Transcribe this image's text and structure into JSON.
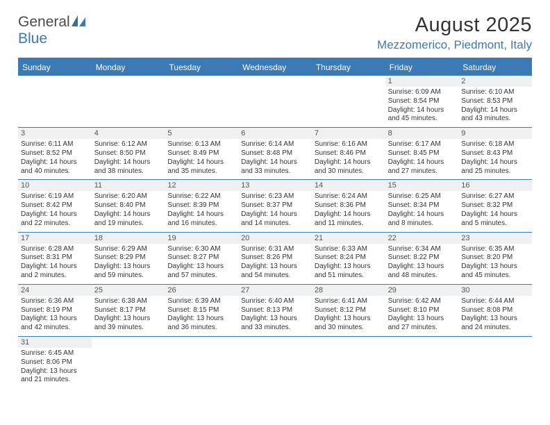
{
  "brand": {
    "word1": "General",
    "word2": "Blue"
  },
  "title": "August 2025",
  "location": "Mezzomerico, Piedmont, Italy",
  "colors": {
    "brand_blue": "#3b7ab5",
    "header_gray": "#eef0f1",
    "text": "#333333",
    "background": "#ffffff"
  },
  "day_labels": [
    "Sunday",
    "Monday",
    "Tuesday",
    "Wednesday",
    "Thursday",
    "Friday",
    "Saturday"
  ],
  "calendar": {
    "type": "table",
    "columns": 7,
    "weeks": [
      [
        null,
        null,
        null,
        null,
        null,
        {
          "n": "1",
          "sr": "Sunrise: 6:09 AM",
          "ss": "Sunset: 8:54 PM",
          "d1": "Daylight: 14 hours",
          "d2": "and 45 minutes."
        },
        {
          "n": "2",
          "sr": "Sunrise: 6:10 AM",
          "ss": "Sunset: 8:53 PM",
          "d1": "Daylight: 14 hours",
          "d2": "and 43 minutes."
        }
      ],
      [
        {
          "n": "3",
          "sr": "Sunrise: 6:11 AM",
          "ss": "Sunset: 8:52 PM",
          "d1": "Daylight: 14 hours",
          "d2": "and 40 minutes."
        },
        {
          "n": "4",
          "sr": "Sunrise: 6:12 AM",
          "ss": "Sunset: 8:50 PM",
          "d1": "Daylight: 14 hours",
          "d2": "and 38 minutes."
        },
        {
          "n": "5",
          "sr": "Sunrise: 6:13 AM",
          "ss": "Sunset: 8:49 PM",
          "d1": "Daylight: 14 hours",
          "d2": "and 35 minutes."
        },
        {
          "n": "6",
          "sr": "Sunrise: 6:14 AM",
          "ss": "Sunset: 8:48 PM",
          "d1": "Daylight: 14 hours",
          "d2": "and 33 minutes."
        },
        {
          "n": "7",
          "sr": "Sunrise: 6:16 AM",
          "ss": "Sunset: 8:46 PM",
          "d1": "Daylight: 14 hours",
          "d2": "and 30 minutes."
        },
        {
          "n": "8",
          "sr": "Sunrise: 6:17 AM",
          "ss": "Sunset: 8:45 PM",
          "d1": "Daylight: 14 hours",
          "d2": "and 27 minutes."
        },
        {
          "n": "9",
          "sr": "Sunrise: 6:18 AM",
          "ss": "Sunset: 8:43 PM",
          "d1": "Daylight: 14 hours",
          "d2": "and 25 minutes."
        }
      ],
      [
        {
          "n": "10",
          "sr": "Sunrise: 6:19 AM",
          "ss": "Sunset: 8:42 PM",
          "d1": "Daylight: 14 hours",
          "d2": "and 22 minutes."
        },
        {
          "n": "11",
          "sr": "Sunrise: 6:20 AM",
          "ss": "Sunset: 8:40 PM",
          "d1": "Daylight: 14 hours",
          "d2": "and 19 minutes."
        },
        {
          "n": "12",
          "sr": "Sunrise: 6:22 AM",
          "ss": "Sunset: 8:39 PM",
          "d1": "Daylight: 14 hours",
          "d2": "and 16 minutes."
        },
        {
          "n": "13",
          "sr": "Sunrise: 6:23 AM",
          "ss": "Sunset: 8:37 PM",
          "d1": "Daylight: 14 hours",
          "d2": "and 14 minutes."
        },
        {
          "n": "14",
          "sr": "Sunrise: 6:24 AM",
          "ss": "Sunset: 8:36 PM",
          "d1": "Daylight: 14 hours",
          "d2": "and 11 minutes."
        },
        {
          "n": "15",
          "sr": "Sunrise: 6:25 AM",
          "ss": "Sunset: 8:34 PM",
          "d1": "Daylight: 14 hours",
          "d2": "and 8 minutes."
        },
        {
          "n": "16",
          "sr": "Sunrise: 6:27 AM",
          "ss": "Sunset: 8:32 PM",
          "d1": "Daylight: 14 hours",
          "d2": "and 5 minutes."
        }
      ],
      [
        {
          "n": "17",
          "sr": "Sunrise: 6:28 AM",
          "ss": "Sunset: 8:31 PM",
          "d1": "Daylight: 14 hours",
          "d2": "and 2 minutes."
        },
        {
          "n": "18",
          "sr": "Sunrise: 6:29 AM",
          "ss": "Sunset: 8:29 PM",
          "d1": "Daylight: 13 hours",
          "d2": "and 59 minutes."
        },
        {
          "n": "19",
          "sr": "Sunrise: 6:30 AM",
          "ss": "Sunset: 8:27 PM",
          "d1": "Daylight: 13 hours",
          "d2": "and 57 minutes."
        },
        {
          "n": "20",
          "sr": "Sunrise: 6:31 AM",
          "ss": "Sunset: 8:26 PM",
          "d1": "Daylight: 13 hours",
          "d2": "and 54 minutes."
        },
        {
          "n": "21",
          "sr": "Sunrise: 6:33 AM",
          "ss": "Sunset: 8:24 PM",
          "d1": "Daylight: 13 hours",
          "d2": "and 51 minutes."
        },
        {
          "n": "22",
          "sr": "Sunrise: 6:34 AM",
          "ss": "Sunset: 8:22 PM",
          "d1": "Daylight: 13 hours",
          "d2": "and 48 minutes."
        },
        {
          "n": "23",
          "sr": "Sunrise: 6:35 AM",
          "ss": "Sunset: 8:20 PM",
          "d1": "Daylight: 13 hours",
          "d2": "and 45 minutes."
        }
      ],
      [
        {
          "n": "24",
          "sr": "Sunrise: 6:36 AM",
          "ss": "Sunset: 8:19 PM",
          "d1": "Daylight: 13 hours",
          "d2": "and 42 minutes."
        },
        {
          "n": "25",
          "sr": "Sunrise: 6:38 AM",
          "ss": "Sunset: 8:17 PM",
          "d1": "Daylight: 13 hours",
          "d2": "and 39 minutes."
        },
        {
          "n": "26",
          "sr": "Sunrise: 6:39 AM",
          "ss": "Sunset: 8:15 PM",
          "d1": "Daylight: 13 hours",
          "d2": "and 36 minutes."
        },
        {
          "n": "27",
          "sr": "Sunrise: 6:40 AM",
          "ss": "Sunset: 8:13 PM",
          "d1": "Daylight: 13 hours",
          "d2": "and 33 minutes."
        },
        {
          "n": "28",
          "sr": "Sunrise: 6:41 AM",
          "ss": "Sunset: 8:12 PM",
          "d1": "Daylight: 13 hours",
          "d2": "and 30 minutes."
        },
        {
          "n": "29",
          "sr": "Sunrise: 6:42 AM",
          "ss": "Sunset: 8:10 PM",
          "d1": "Daylight: 13 hours",
          "d2": "and 27 minutes."
        },
        {
          "n": "30",
          "sr": "Sunrise: 6:44 AM",
          "ss": "Sunset: 8:08 PM",
          "d1": "Daylight: 13 hours",
          "d2": "and 24 minutes."
        }
      ],
      [
        {
          "n": "31",
          "sr": "Sunrise: 6:45 AM",
          "ss": "Sunset: 8:06 PM",
          "d1": "Daylight: 13 hours",
          "d2": "and 21 minutes."
        },
        null,
        null,
        null,
        null,
        null,
        null
      ]
    ]
  }
}
